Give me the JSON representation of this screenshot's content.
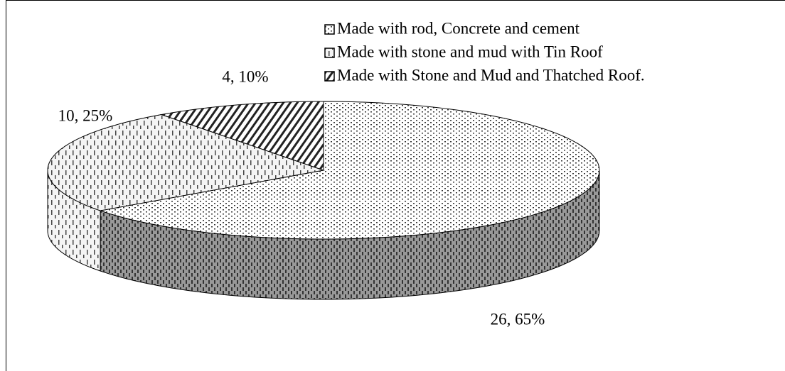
{
  "chart_data": {
    "type": "pie",
    "categories": [
      "Made with rod, Concrete and cement",
      "Made with stone and mud with Tin Roof",
      "Made with Stone and Mud and Thatched Roof."
    ],
    "values": [
      26,
      10,
      4
    ],
    "value_labels": [
      "26, 65%",
      "10, 25%",
      "4, 10%"
    ],
    "colors": [
      "#333333",
      "#444444",
      "#222222"
    ],
    "legend": "top-right"
  }
}
